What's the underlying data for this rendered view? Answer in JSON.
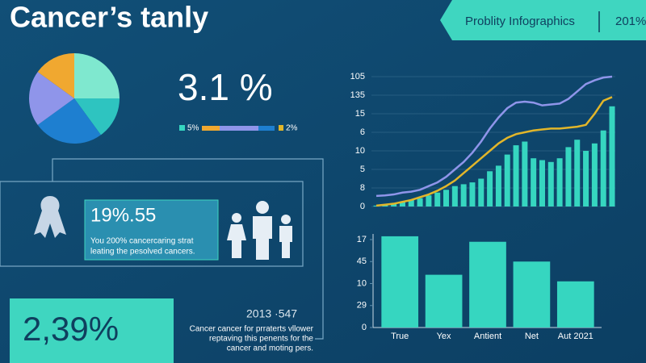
{
  "header": {
    "title": "Cancer’s tanly",
    "banner": "Problity Infographics",
    "banner_year": "201%"
  },
  "stat": {
    "value": "3.1 %",
    "legend": [
      "5%",
      "2%"
    ]
  },
  "card": {
    "value": "19%.55",
    "text": [
      "You 200% cancercaring strat",
      "leating the pesolved cancers."
    ]
  },
  "footer": {
    "value": "2,39%",
    "year": "2013 ·547",
    "text": [
      "Cancer cancer for prraterts vllower",
      "reptaving this penents for the",
      "cancer and moting pers."
    ]
  },
  "chart_data": [
    {
      "type": "pie",
      "categories": [
        null,
        null,
        null,
        null,
        null
      ],
      "values": [
        25,
        15,
        25,
        20,
        15
      ],
      "colors": [
        "#7fe8cf",
        "#2ec4c0",
        "#1e7fd0",
        "#8f95ea",
        "#f0a830"
      ]
    },
    {
      "type": "combo",
      "categories": [
        null,
        null,
        null,
        null,
        null,
        null,
        null,
        null,
        null,
        null,
        null,
        null,
        null,
        null,
        null,
        null,
        null,
        null,
        null,
        null,
        null,
        null,
        null,
        null,
        null,
        null,
        null,
        null
      ],
      "ylim": [
        0,
        7
      ],
      "yticks": [
        {
          "value": 7,
          "label": "105"
        },
        {
          "value": 6,
          "label": "135"
        },
        {
          "value": 5,
          "label": "15"
        },
        {
          "value": 4,
          "label": "6"
        },
        {
          "value": 3,
          "label": "10"
        },
        {
          "value": 2,
          "label": "5"
        },
        {
          "value": 1,
          "label": "8"
        },
        {
          "value": 0,
          "label": "0"
        }
      ],
      "grid": true,
      "series": [
        {
          "type": "bar",
          "color": "#36d6c0",
          "values": [
            0.05,
            0.1,
            0.15,
            0.25,
            0.35,
            0.45,
            0.6,
            0.75,
            0.9,
            1.1,
            1.2,
            1.3,
            1.5,
            1.9,
            2.2,
            2.8,
            3.3,
            3.5,
            2.6,
            2.5,
            2.4,
            2.6,
            3.2,
            3.6,
            3.0,
            3.4,
            4.1,
            5.4
          ]
        },
        {
          "type": "line",
          "color": "#8f95ea",
          "values": [
            0.57,
            0.6,
            0.65,
            0.75,
            0.8,
            0.9,
            1.1,
            1.3,
            1.6,
            2.0,
            2.4,
            2.9,
            3.5,
            4.2,
            4.8,
            5.3,
            5.6,
            5.65,
            5.6,
            5.45,
            5.5,
            5.55,
            5.8,
            6.2,
            6.6,
            6.8,
            6.95,
            7.0
          ]
        },
        {
          "type": "line",
          "color": "#e2b62a",
          "values": [
            0.05,
            0.1,
            0.15,
            0.25,
            0.35,
            0.5,
            0.65,
            0.85,
            1.1,
            1.4,
            1.8,
            2.2,
            2.6,
            3.0,
            3.4,
            3.7,
            3.9,
            4.0,
            4.1,
            4.15,
            4.2,
            4.2,
            4.25,
            4.3,
            4.4,
            5.0,
            5.7,
            5.9
          ]
        }
      ]
    },
    {
      "type": "bar",
      "categories": [
        "True",
        "Yex",
        "Antient",
        "Net",
        "Aut 2021"
      ],
      "values": [
        4.15,
        2.4,
        3.9,
        3.0,
        2.1
      ],
      "color": "#36d6c0",
      "ylim": [
        0,
        4
      ],
      "yticks": [
        {
          "value": 4,
          "label": "17"
        },
        {
          "value": 3,
          "label": "45"
        },
        {
          "value": 2,
          "label": "10"
        },
        {
          "value": 1,
          "label": "29"
        },
        {
          "value": 0,
          "label": "0"
        }
      ]
    }
  ]
}
